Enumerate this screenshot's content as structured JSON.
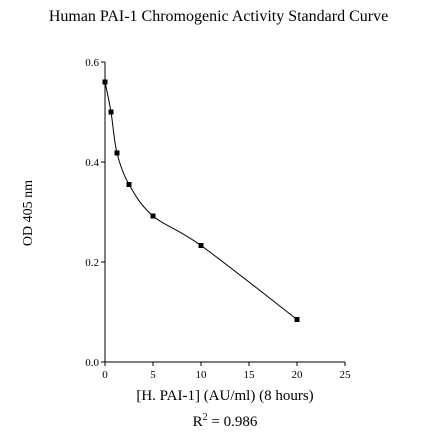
{
  "chart_data": {
    "type": "line",
    "title": "Human PAI-1 Chromogenic Activity Standard Curve",
    "xlabel": "[H. PAI-1] (AU/ml) (8 hours)",
    "ylabel": "OD 405 nm",
    "xlim": [
      0,
      25
    ],
    "ylim": [
      0.0,
      0.6
    ],
    "xticks": [
      0,
      5,
      10,
      15,
      20,
      25
    ],
    "yticks": [
      "0.0",
      "0.2",
      "0.4",
      "0.6"
    ],
    "grid": false,
    "series": [
      {
        "x": [
          0,
          0.625,
          1.25,
          2.5,
          5,
          10,
          20
        ],
        "y": [
          0.56,
          0.5,
          0.418,
          0.355,
          0.292,
          0.233,
          0.085
        ]
      }
    ],
    "annotation": {
      "r2_prefix": "R",
      "r2_exp": "2",
      "r2_value": " = 0.986"
    }
  }
}
